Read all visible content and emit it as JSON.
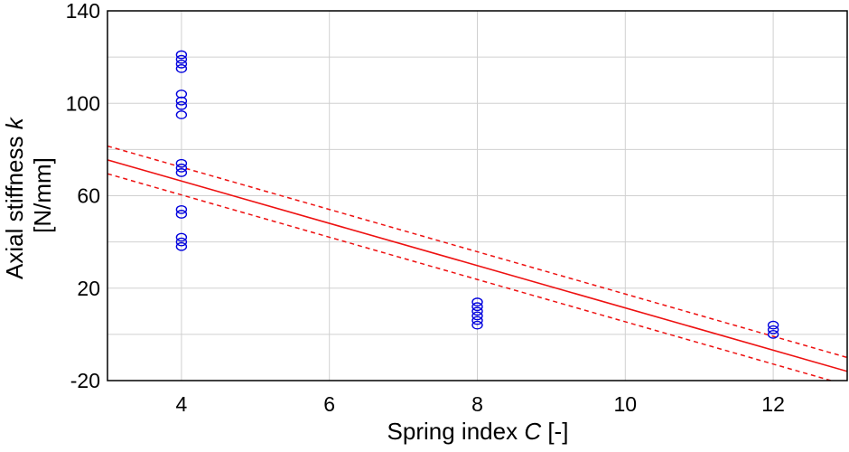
{
  "chart_data": {
    "type": "scatter",
    "xlabel": "Spring index C [-]",
    "xlabel_parts": {
      "prefix": "Spring index ",
      "variable": "C",
      "suffix": " [-]"
    },
    "ylabel": "Axial stiffness k [N/mm]",
    "ylabel_parts": {
      "line1_prefix": "Axial stiffness ",
      "line1_variable": "k",
      "line2": "[N/mm]"
    },
    "xlim": [
      3,
      13
    ],
    "ylim": [
      -20,
      140
    ],
    "xticks": [
      4,
      6,
      8,
      10,
      12
    ],
    "yticks": [
      -20,
      20,
      60,
      100,
      140
    ],
    "grid": true,
    "colors": {
      "points": "#0000dd",
      "fit": "#ee1111",
      "grid": "#d0d0d0",
      "axis": "#000000"
    },
    "points": [
      {
        "x": 4,
        "y": 121
      },
      {
        "x": 4,
        "y": 119
      },
      {
        "x": 4,
        "y": 117
      },
      {
        "x": 4,
        "y": 115
      },
      {
        "x": 4,
        "y": 104
      },
      {
        "x": 4,
        "y": 101
      },
      {
        "x": 4,
        "y": 99
      },
      {
        "x": 4,
        "y": 95
      },
      {
        "x": 4,
        "y": 74
      },
      {
        "x": 4,
        "y": 72
      },
      {
        "x": 4,
        "y": 70
      },
      {
        "x": 4,
        "y": 54
      },
      {
        "x": 4,
        "y": 52
      },
      {
        "x": 4,
        "y": 42
      },
      {
        "x": 4,
        "y": 40
      },
      {
        "x": 4,
        "y": 38
      },
      {
        "x": 8,
        "y": 14
      },
      {
        "x": 8,
        "y": 12
      },
      {
        "x": 8,
        "y": 10
      },
      {
        "x": 8,
        "y": 8
      },
      {
        "x": 8,
        "y": 6
      },
      {
        "x": 8,
        "y": 4
      },
      {
        "x": 12,
        "y": 4
      },
      {
        "x": 12,
        "y": 2
      },
      {
        "x": 12,
        "y": 0
      }
    ],
    "fit": {
      "type": "linear",
      "x": [
        3,
        13
      ],
      "y": [
        75.5,
        -16
      ]
    },
    "confidence_band": {
      "upper": {
        "x": [
          3,
          13
        ],
        "y": [
          81.5,
          -10
        ]
      },
      "lower": {
        "x": [
          3,
          13
        ],
        "y": [
          69.5,
          -22
        ]
      }
    }
  }
}
